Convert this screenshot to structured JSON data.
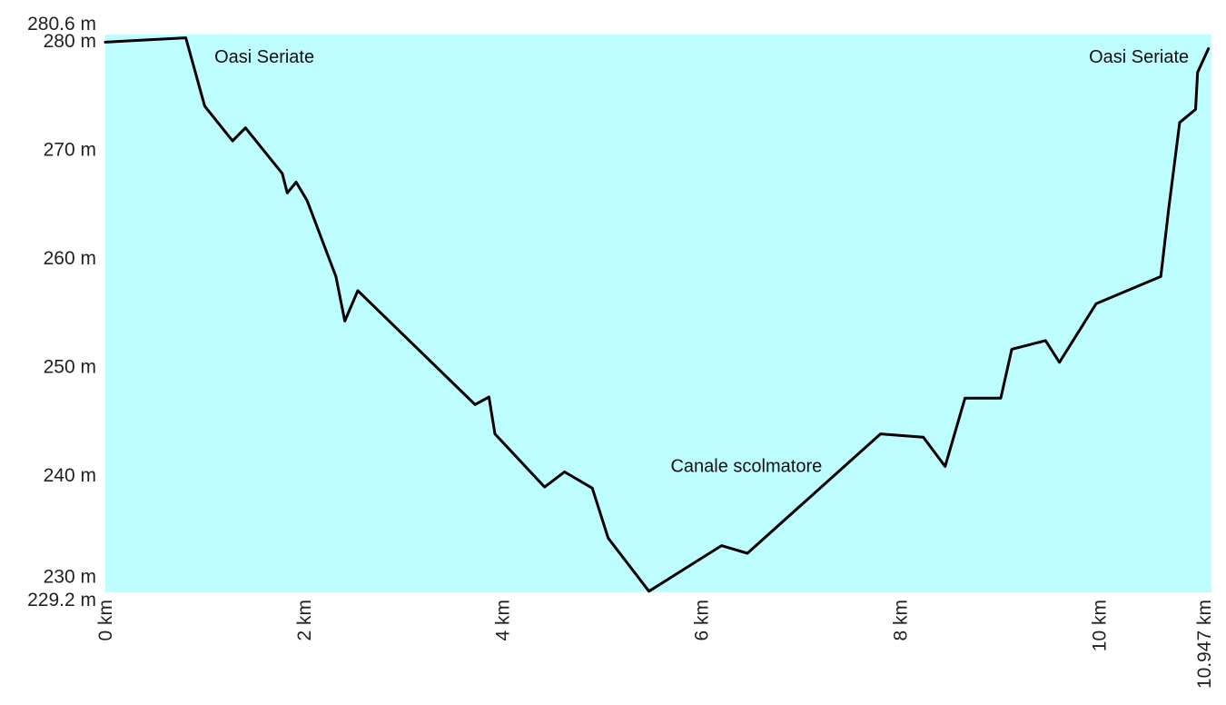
{
  "chart_data": {
    "type": "area",
    "title": "",
    "xlabel": "",
    "ylabel": "",
    "x_unit": "km",
    "y_unit": "m",
    "xlim": [
      0,
      10.947
    ],
    "ylim": [
      229.2,
      280.6
    ],
    "grid": false,
    "legend": "none",
    "fill_color": "#bdfcff",
    "line_color": "#000000",
    "y_ticks": [
      {
        "value": 280.6,
        "label": "280.6 m"
      },
      {
        "value": 280,
        "label": "280 m"
      },
      {
        "value": 270,
        "label": "270 m"
      },
      {
        "value": 260,
        "label": "260 m"
      },
      {
        "value": 250,
        "label": "250 m"
      },
      {
        "value": 240,
        "label": "240 m"
      },
      {
        "value": 230,
        "label": "230 m"
      },
      {
        "value": 229.2,
        "label": "229.2 m"
      }
    ],
    "x_ticks": [
      {
        "value": 0,
        "label": "0 km"
      },
      {
        "value": 2,
        "label": "2 km"
      },
      {
        "value": 4,
        "label": "4 km"
      },
      {
        "value": 6,
        "label": "6 km"
      },
      {
        "value": 8,
        "label": "8 km"
      },
      {
        "value": 10,
        "label": "10 km"
      },
      {
        "value": 10.947,
        "label": "10.947 km"
      }
    ],
    "series": [
      {
        "x": [
          0,
          0.81,
          1.0,
          1.28,
          1.41,
          1.78,
          1.83,
          1.92,
          2.03,
          2.32,
          2.41,
          2.54,
          3.72,
          3.86,
          3.92,
          4.42,
          4.62,
          4.9,
          5.06,
          5.47,
          6.2,
          6.46,
          7.8,
          8.23,
          8.45,
          8.65,
          9.01,
          9.12,
          9.46,
          9.6,
          9.97,
          10.62,
          10.7,
          10.81,
          10.97,
          10.99,
          11.1
        ],
        "y": [
          279.9,
          280.3,
          274,
          270.8,
          272,
          267.8,
          266,
          267,
          265.3,
          258.3,
          254.2,
          257,
          246.5,
          247.2,
          243.8,
          238.9,
          240.3,
          238.8,
          234.2,
          229.3,
          233.5,
          232.8,
          243.8,
          243.5,
          240.8,
          247.1,
          247.1,
          251.6,
          252.4,
          250.4,
          255.8,
          258.3,
          264.6,
          272.5,
          273.7,
          277.1,
          279.3
        ]
      }
    ],
    "annotations": [
      {
        "text": "Oasi Seriate",
        "x": 1.6,
        "y": 278
      },
      {
        "text": "Oasi Seriate",
        "x": 10.4,
        "y": 278
      },
      {
        "text": "Canale scolmatore",
        "x": 6.45,
        "y": 240.3
      }
    ]
  }
}
